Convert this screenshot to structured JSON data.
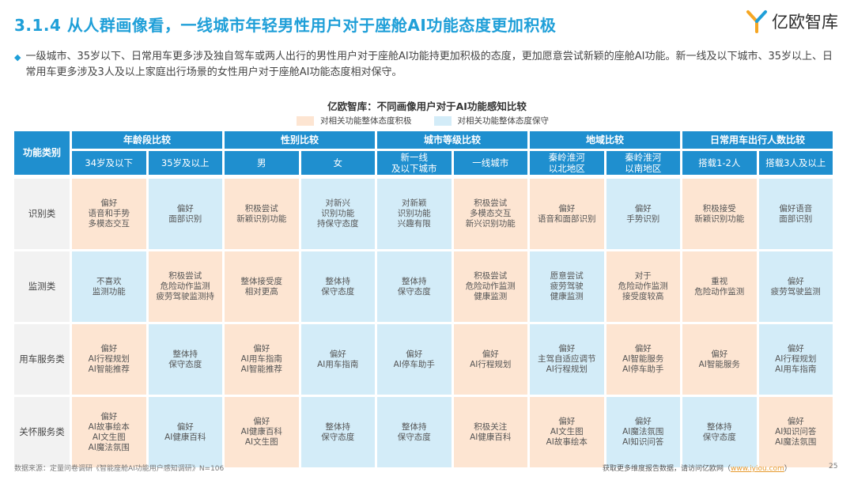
{
  "title": "3.1.4 从人群画像看，一线城市年轻男性用户对于座舱AI功能态度更加积极",
  "logo": {
    "text": "亿欧智库"
  },
  "summary": "一级城市、35岁以下、日常用车更多涉及独自驾车或两人出行的男性用户对于座舱AI功能持更加积极的态度，更加愿意尝试新颖的座舱AI功能。新一线及以下城市、35岁以上、日常用车更多涉及3人及以上家庭出行场景的女性用户对于座舱AI功能态度相对保守。",
  "chart_title": "亿欧智库：不同画像用户对于AI功能感知比较",
  "legend": {
    "positive": "对相关功能整体态度积极",
    "conservative": "对相关功能整体态度保守"
  },
  "colors": {
    "header": "#1f8fcf",
    "positive": "#fde5d2",
    "conservative": "#d3ecf8",
    "title": "#1f9fd8"
  },
  "table": {
    "row_header": "功能类别",
    "groups": [
      "年龄段比较",
      "性别比较",
      "城市等级比较",
      "地域比较",
      "日常用车出行人数比较"
    ],
    "columns": [
      "34岁及以下",
      "35岁及以上",
      "男",
      "女",
      "新一线\n及以下城市",
      "一线城市",
      "秦岭淮河\n以北地区",
      "秦岭淮河\n以南地区",
      "搭载1-2人",
      "搭载3人及以上"
    ],
    "rows": [
      {
        "category": "识别类",
        "cells": [
          {
            "text": "偏好\n语音和手势\n多模态交互",
            "tone": "positive"
          },
          {
            "text": "偏好\n面部识别",
            "tone": "conservative"
          },
          {
            "text": "积极尝试\n新颖识别功能",
            "tone": "positive"
          },
          {
            "text": "对新兴\n识别功能\n持保守态度",
            "tone": "conservative"
          },
          {
            "text": "对新颖\n识别功能\n兴趣有限",
            "tone": "conservative"
          },
          {
            "text": "积极尝试\n多模态交互\n新兴识别功能",
            "tone": "positive"
          },
          {
            "text": "偏好\n语音和面部识别",
            "tone": "positive"
          },
          {
            "text": "偏好\n手势识别",
            "tone": "conservative"
          },
          {
            "text": "积极接受\n新颖识别功能",
            "tone": "positive"
          },
          {
            "text": "偏好语音\n面部识别",
            "tone": "conservative"
          }
        ]
      },
      {
        "category": "监测类",
        "cells": [
          {
            "text": "不喜欢\n监测功能",
            "tone": "conservative"
          },
          {
            "text": "积极尝试\n危险动作监测\n疲劳驾驶监测持",
            "tone": "positive"
          },
          {
            "text": "整体接受度\n相对更高",
            "tone": "positive"
          },
          {
            "text": "整体持\n保守态度",
            "tone": "conservative"
          },
          {
            "text": "整体持\n保守态度",
            "tone": "conservative"
          },
          {
            "text": "积极尝试\n危险动作监测\n健康监测",
            "tone": "positive"
          },
          {
            "text": "愿意尝试\n疲劳驾驶\n健康监测",
            "tone": "conservative"
          },
          {
            "text": "对于\n危险动作监测\n接受度较高",
            "tone": "positive"
          },
          {
            "text": "重视\n危险动作监测",
            "tone": "positive"
          },
          {
            "text": "偏好\n疲劳驾驶监测",
            "tone": "conservative"
          }
        ]
      },
      {
        "category": "用车服务类",
        "cells": [
          {
            "text": "偏好\nAI行程规划\nAI智能推荐",
            "tone": "positive"
          },
          {
            "text": "整体持\n保守态度",
            "tone": "conservative"
          },
          {
            "text": "偏好\nAI用车指南\nAI智能推荐",
            "tone": "positive"
          },
          {
            "text": "偏好\nAI用车指南",
            "tone": "conservative"
          },
          {
            "text": "偏好\nAI停车助手",
            "tone": "conservative"
          },
          {
            "text": "偏好\nAI行程规划",
            "tone": "positive"
          },
          {
            "text": "偏好\n主驾自适应调节\nAI行程规划",
            "tone": "conservative"
          },
          {
            "text": "偏好\nAI智能服务\nAI停车助手",
            "tone": "positive"
          },
          {
            "text": "偏好\nAI智能服务",
            "tone": "positive"
          },
          {
            "text": "偏好\nAI行程规划\nAI用车指南",
            "tone": "conservative"
          }
        ]
      },
      {
        "category": "关怀服务类",
        "cells": [
          {
            "text": "偏好\nAI故事绘本\nAI文生图\nAI魔法氛围",
            "tone": "positive"
          },
          {
            "text": "偏好\nAI健康百科",
            "tone": "conservative"
          },
          {
            "text": "偏好\nAI健康百科\nAI文生图",
            "tone": "positive"
          },
          {
            "text": "整体持\n保守态度",
            "tone": "conservative"
          },
          {
            "text": "整体持\n保守态度",
            "tone": "conservative"
          },
          {
            "text": "积极关注\nAI健康百科",
            "tone": "positive"
          },
          {
            "text": "偏好\nAI文生图\nAI故事绘本",
            "tone": "positive"
          },
          {
            "text": "偏好\nAI魔法氛围\nAI知识问答",
            "tone": "conservative"
          },
          {
            "text": "整体持\n保守态度",
            "tone": "conservative"
          },
          {
            "text": "偏好\nAI知识问答\nAI魔法氛围",
            "tone": "positive"
          }
        ]
      }
    ]
  },
  "footer": {
    "source": "数据来源：定量问卷调研《智能座舱AI功能用户感知调研》N=106",
    "more_prefix": "获取更多维度报告数据，请访问亿欧网（",
    "more_link": "www.iyiou.com",
    "more_suffix": "）",
    "page": "25"
  }
}
